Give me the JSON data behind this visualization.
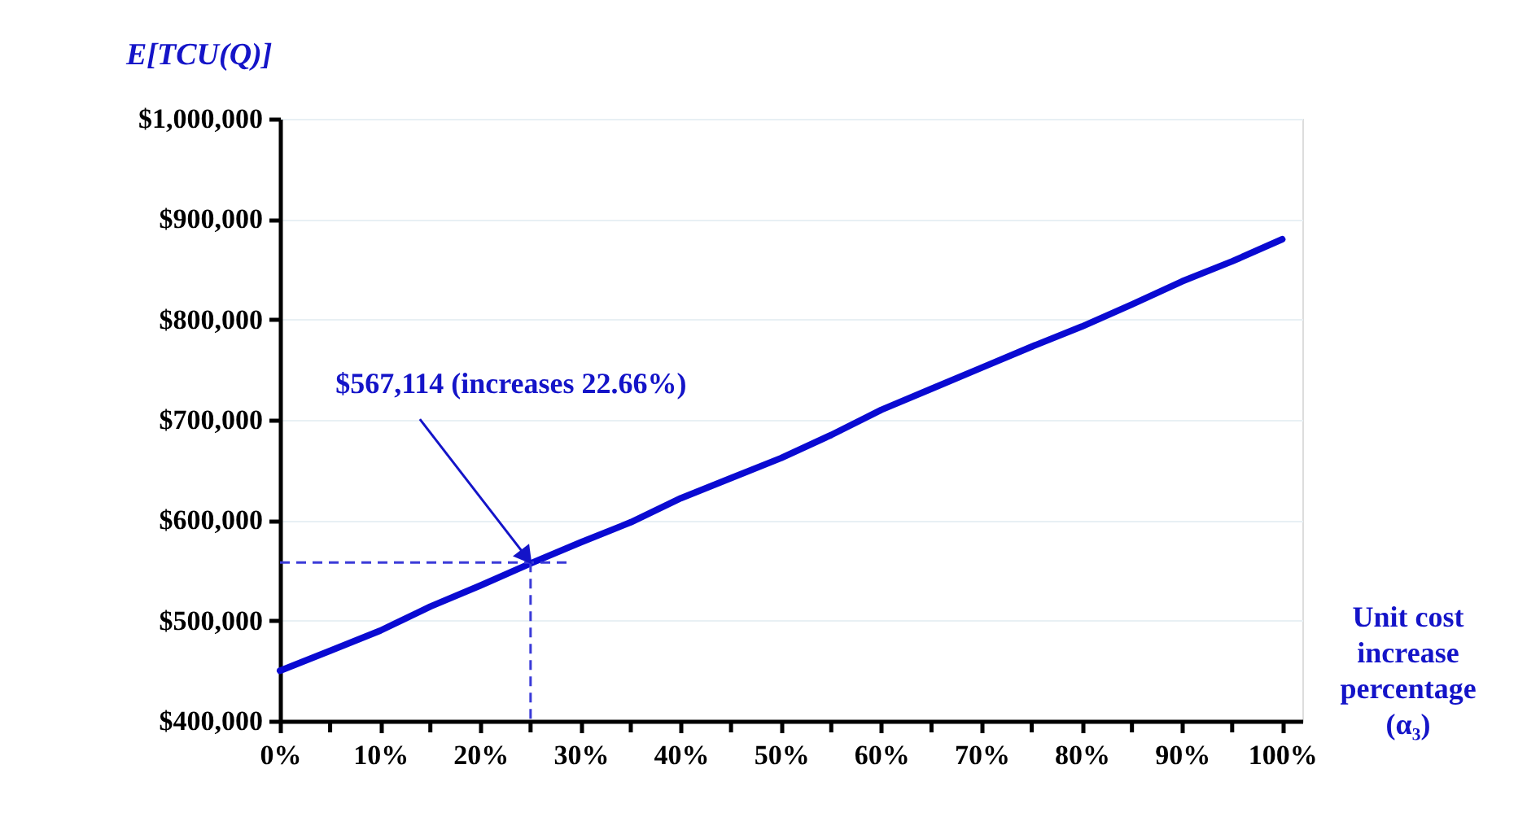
{
  "chart_data": {
    "type": "line",
    "ylabel": "E[TCU(Q)]",
    "xlabel": "Unit cost increase percentage (α₃)",
    "x": [
      0,
      5,
      10,
      15,
      20,
      25,
      30,
      35,
      40,
      45,
      50,
      55,
      60,
      65,
      70,
      75,
      80,
      85,
      90,
      95,
      100
    ],
    "series": [
      {
        "color": "#0a0ad2",
        "values": [
          450000,
          470000,
          490000,
          514000,
          535000,
          557000,
          578000,
          598000,
          622000,
          642000,
          662000,
          685000,
          710000,
          731000,
          752000,
          773000,
          793000,
          815000,
          838000,
          858000,
          880000
        ]
      }
    ],
    "xlim": [
      0,
      102
    ],
    "xticks": [
      {
        "value": 0,
        "label": "0%"
      },
      {
        "value": 5,
        "label": null
      },
      {
        "value": 10,
        "label": "10%"
      },
      {
        "value": 15,
        "label": null
      },
      {
        "value": 20,
        "label": "20%"
      },
      {
        "value": 25,
        "label": null
      },
      {
        "value": 30,
        "label": "30%"
      },
      {
        "value": 35,
        "label": null
      },
      {
        "value": 40,
        "label": "40%"
      },
      {
        "value": 45,
        "label": null
      },
      {
        "value": 50,
        "label": "50%"
      },
      {
        "value": 55,
        "label": null
      },
      {
        "value": 60,
        "label": "60%"
      },
      {
        "value": 65,
        "label": null
      },
      {
        "value": 70,
        "label": "70%"
      },
      {
        "value": 75,
        "label": null
      },
      {
        "value": 80,
        "label": "80%"
      },
      {
        "value": 85,
        "label": null
      },
      {
        "value": 90,
        "label": "90%"
      },
      {
        "value": 95,
        "label": null
      },
      {
        "value": 100,
        "label": "100%"
      }
    ],
    "ylim": [
      400000,
      1000000
    ],
    "yticks": [
      {
        "value": 400000,
        "label": "$400,000"
      },
      {
        "value": 500000,
        "label": "$500,000"
      },
      {
        "value": 600000,
        "label": "$600,000"
      },
      {
        "value": 700000,
        "label": "$700,000"
      },
      {
        "value": 800000,
        "label": "$800,000"
      },
      {
        "value": 900000,
        "label": "$900,000"
      },
      {
        "value": 1000000,
        "label": "$1,000,000"
      }
    ],
    "grid": "y",
    "marker": "none",
    "line_style": "solid",
    "ref_lines": [
      {
        "axis": "x",
        "value": 25,
        "color": "#3a3ad8",
        "line_style": "dashed"
      },
      {
        "axis": "y",
        "value": 558000,
        "color": "#3a3ad8",
        "line_style": "dashed"
      }
    ],
    "annotations": [
      {
        "text": "$567,114 (increases 22.66%)",
        "x": 25,
        "y": 558000
      }
    ]
  }
}
